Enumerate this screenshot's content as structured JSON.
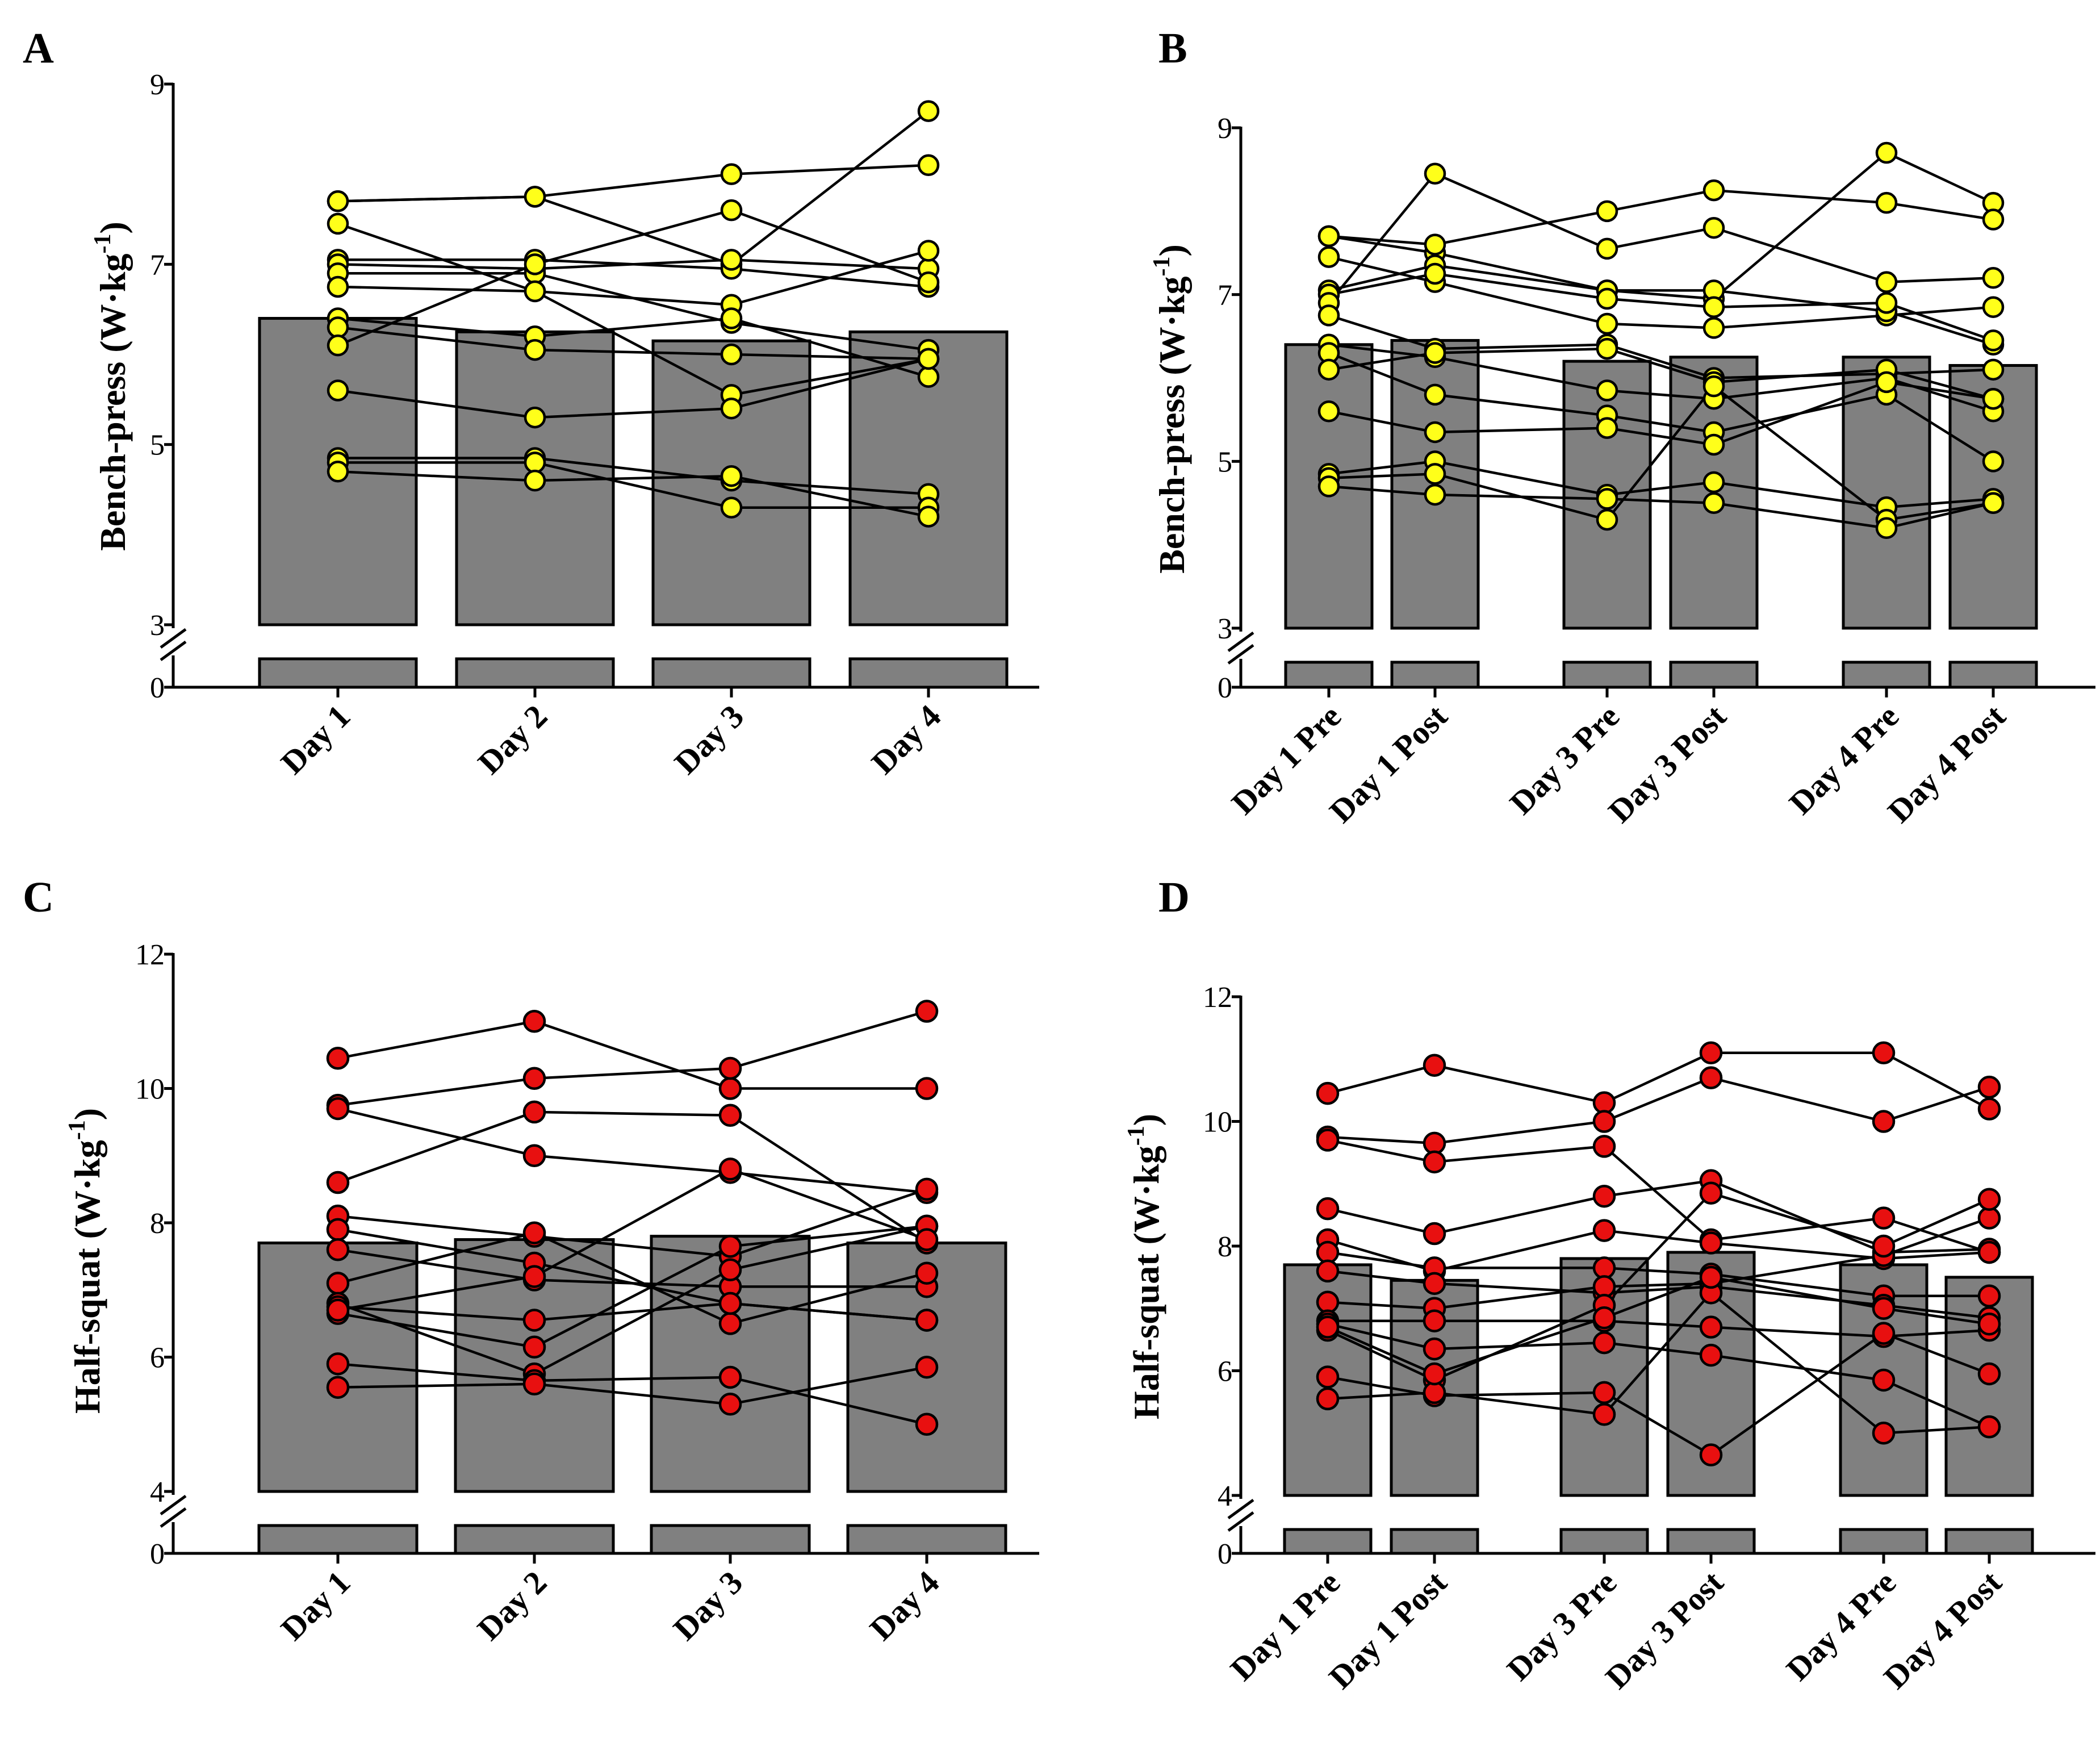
{
  "colors": {
    "bar_fill": "#808080",
    "bench_points": "#ffff1a",
    "squat_points": "#e81010",
    "axis": "#000000"
  },
  "chart_data": [
    {
      "panel": "A",
      "type": "bar",
      "title": "",
      "xlabel": "",
      "ylabel": "Bench-press (W·kg-1)",
      "ylabel_main": "Bench-press (W·kg",
      "ylabel_sup": "-1",
      "ylabel_close": ")",
      "axis_break": true,
      "y_ticks": [
        0,
        3,
        5,
        7,
        9
      ],
      "ylim": [
        3,
        9
      ],
      "categories": [
        "Day 1",
        "Day 2",
        "Day 3",
        "Day 4"
      ],
      "values": [
        6.4,
        6.25,
        6.15,
        6.25
      ],
      "point_color": "#ffff1a",
      "subjects": [
        [
          7.7,
          7.75,
          7.0,
          8.7
        ],
        [
          7.7,
          7.75,
          8.0,
          8.1
        ],
        [
          7.45,
          6.7,
          5.55,
          5.95
        ],
        [
          7.05,
          7.05,
          6.95,
          6.75
        ],
        [
          7.0,
          6.95,
          7.05,
          6.95
        ],
        [
          6.9,
          6.9,
          6.35,
          6.05
        ],
        [
          6.75,
          6.7,
          6.55,
          7.15
        ],
        [
          6.4,
          6.2,
          6.4,
          5.75
        ],
        [
          6.3,
          6.05,
          6.0,
          5.95
        ],
        [
          6.1,
          7.0,
          7.6,
          6.8
        ],
        [
          5.6,
          5.3,
          5.4,
          5.95
        ],
        [
          4.85,
          4.85,
          4.6,
          4.45
        ],
        [
          4.8,
          4.8,
          4.3,
          4.3
        ],
        [
          4.7,
          4.6,
          4.65,
          4.2
        ]
      ]
    },
    {
      "panel": "B",
      "type": "bar",
      "title": "",
      "xlabel": "",
      "ylabel": "Bench-press (W·kg-1)",
      "ylabel_main": "Bench-press (W·kg",
      "ylabel_sup": "-1",
      "ylabel_close": ")",
      "axis_break": true,
      "y_ticks": [
        0,
        3,
        5,
        7,
        9
      ],
      "ylim": [
        3,
        9
      ],
      "categories": [
        "Day 1 Pre",
        "Day 1 Post",
        "Day 3 Pre",
        "Day 3 Post",
        "Day 4 Pre",
        "Day 4 Post"
      ],
      "values": [
        6.4,
        6.45,
        6.2,
        6.25,
        6.25,
        6.15
      ],
      "point_color": "#ffff1a",
      "subjects": [
        [
          7.7,
          7.5,
          7.05,
          6.95,
          8.7,
          8.1
        ],
        [
          7.7,
          7.6,
          8.0,
          8.25,
          8.1,
          7.9
        ],
        [
          7.45,
          7.15,
          6.65,
          6.6,
          6.75,
          6.85
        ],
        [
          7.05,
          7.35,
          7.05,
          7.05,
          6.8,
          6.4
        ],
        [
          7.0,
          7.25,
          6.95,
          6.85,
          6.9,
          6.45
        ],
        [
          6.9,
          8.45,
          7.55,
          7.8,
          7.15,
          7.2
        ],
        [
          6.75,
          6.35,
          6.4,
          6.0,
          6.05,
          6.1
        ],
        [
          6.4,
          6.25,
          5.85,
          5.75,
          6.0,
          5.6
        ],
        [
          6.3,
          5.8,
          5.55,
          5.35,
          5.8,
          5.0
        ],
        [
          6.1,
          6.3,
          6.35,
          5.95,
          6.1,
          5.75
        ],
        [
          5.6,
          5.35,
          5.4,
          5.2,
          5.95,
          5.75
        ],
        [
          4.85,
          5.0,
          4.6,
          4.75,
          4.45,
          4.55
        ],
        [
          4.8,
          4.85,
          4.3,
          5.9,
          4.3,
          4.5
        ],
        [
          4.7,
          4.6,
          4.55,
          4.5,
          4.2,
          4.5
        ]
      ]
    },
    {
      "panel": "C",
      "type": "bar",
      "title": "",
      "xlabel": "",
      "ylabel": "Half-squat (W·kg-1)",
      "ylabel_main": "Half-squat (W·kg",
      "ylabel_sup": "-1",
      "ylabel_close": ")",
      "axis_break": true,
      "y_ticks": [
        0,
        4,
        6,
        8,
        10,
        12
      ],
      "ylim": [
        4,
        12
      ],
      "categories": [
        "Day 1",
        "Day 2",
        "Day 3",
        "Day 4"
      ],
      "values": [
        7.7,
        7.75,
        7.8,
        7.7
      ],
      "point_color": "#e81010",
      "subjects": [
        [
          10.45,
          11.0,
          10.0,
          10.0
        ],
        [
          9.75,
          10.15,
          10.3,
          11.15
        ],
        [
          9.7,
          9.0,
          8.75,
          8.45
        ],
        [
          8.6,
          9.65,
          9.6,
          7.7
        ],
        [
          8.1,
          7.8,
          7.5,
          8.5
        ],
        [
          7.9,
          7.4,
          6.8,
          6.55
        ],
        [
          7.6,
          7.15,
          7.05,
          7.05
        ],
        [
          7.1,
          7.85,
          6.5,
          7.25
        ],
        [
          6.8,
          5.75,
          7.3,
          7.95
        ],
        [
          6.75,
          6.55,
          6.8,
          6.55
        ],
        [
          6.65,
          6.15,
          7.65,
          7.95
        ],
        [
          5.9,
          5.65,
          5.7,
          5.0
        ],
        [
          5.55,
          5.6,
          5.3,
          5.85
        ],
        [
          6.7,
          7.2,
          8.8,
          7.75
        ]
      ]
    },
    {
      "panel": "D",
      "type": "bar",
      "title": "",
      "xlabel": "",
      "ylabel": "Half-squat (W·kg-1)",
      "ylabel_main": "Half-squat (W·kg",
      "ylabel_sup": "-1",
      "ylabel_close": ")",
      "axis_break": true,
      "y_ticks": [
        0,
        4,
        6,
        8,
        10,
        12
      ],
      "ylim": [
        4,
        12
      ],
      "categories": [
        "Day 1 Pre",
        "Day 1 Post",
        "Day 3 Pre",
        "Day 3 Post",
        "Day 4 Pre",
        "Day 4 Post"
      ],
      "values": [
        7.7,
        7.45,
        7.8,
        7.9,
        7.7,
        7.5
      ],
      "point_color": "#e81010",
      "subjects": [
        [
          10.45,
          10.9,
          10.3,
          11.1,
          11.1,
          10.2
        ],
        [
          9.75,
          9.65,
          10.0,
          10.7,
          10.0,
          10.55
        ],
        [
          9.7,
          9.35,
          9.6,
          8.1,
          8.45,
          7.9
        ],
        [
          8.6,
          8.2,
          8.8,
          9.05,
          7.9,
          7.95
        ],
        [
          8.1,
          7.6,
          8.25,
          8.05,
          7.8,
          7.9
        ],
        [
          7.9,
          7.65,
          7.65,
          7.55,
          7.2,
          7.2
        ],
        [
          7.6,
          7.4,
          7.25,
          7.35,
          7.05,
          6.85
        ],
        [
          7.1,
          7.0,
          7.35,
          7.4,
          7.85,
          8.45
        ],
        [
          6.8,
          6.8,
          6.8,
          6.7,
          6.55,
          6.65
        ],
        [
          6.75,
          6.35,
          6.45,
          6.25,
          5.85,
          5.1
        ],
        [
          6.65,
          5.85,
          7.05,
          8.85,
          8.0,
          8.75
        ],
        [
          5.9,
          5.6,
          5.65,
          4.65,
          6.6,
          5.95
        ],
        [
          5.55,
          5.65,
          5.3,
          7.25,
          5.0,
          5.1
        ],
        [
          6.7,
          5.95,
          6.85,
          7.5,
          7.0,
          6.75
        ]
      ]
    }
  ]
}
